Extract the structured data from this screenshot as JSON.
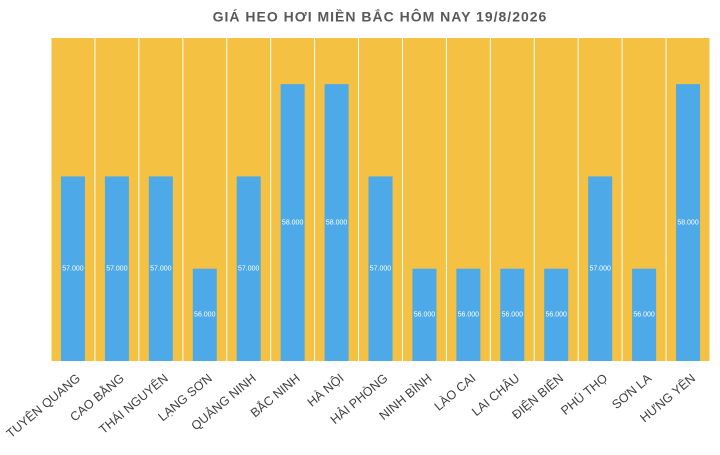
{
  "chart_data": {
    "type": "bar",
    "title": "GIÁ HEO HƠI MIỀN BẮC HÔM NAY 19/8/2026",
    "categories": [
      "TUYÊN QUANG",
      "CAO BẰNG",
      "THÁI NGUYÊN",
      "LẠNG SƠN",
      "QUẢNG NINH",
      "BẮC NINH",
      "HÀ NỘI",
      "HẢI PHÒNG",
      "NINH BÌNH",
      "LÀO CAI",
      "LAI CHÂU",
      "ĐIỆN BIÊN",
      "PHÚ THỌ",
      "SƠN LA",
      "HƯNG YÊN"
    ],
    "values": [
      57000,
      57000,
      57000,
      56000,
      57000,
      58000,
      58000,
      57000,
      56000,
      56000,
      56000,
      56000,
      57000,
      56000,
      58000
    ],
    "value_labels": [
      "57.000",
      "57.000",
      "57.000",
      "56.000",
      "57.000",
      "58.000",
      "58.000",
      "57.000",
      "56.000",
      "56.000",
      "56.000",
      "56.000",
      "57.000",
      "56.000",
      "58.000"
    ],
    "color": "#4da9e8",
    "background_color": "#f4c142",
    "ylim": [
      55000,
      58500
    ]
  }
}
